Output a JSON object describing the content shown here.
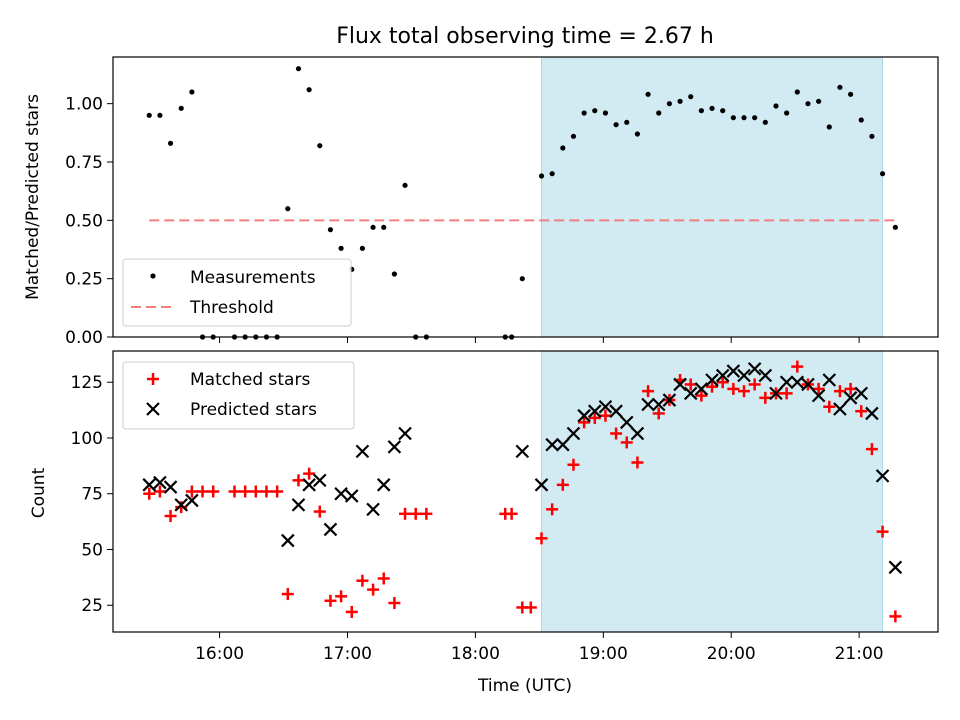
{
  "chart_data": [
    {
      "type": "scatter",
      "title": "Flux total observing time = 2.67 h",
      "xlabel": "",
      "ylabel": "Matched/Predicted stars",
      "xlim": [
        "15:10",
        "21:37"
      ],
      "ylim": [
        0,
        1.2
      ],
      "yticks": [
        0.0,
        0.25,
        0.5,
        0.75,
        1.0
      ],
      "ytick_labels": [
        "0.00",
        "0.25",
        "0.50",
        "0.75",
        "1.00"
      ],
      "shaded_span": [
        "18:31",
        "21:11"
      ],
      "legend": {
        "placement": "lower-left",
        "entries": [
          "Measurements",
          "Threshold"
        ]
      },
      "threshold": {
        "name": "Threshold",
        "y": 0.5,
        "x_range": [
          "15:27",
          "21:17"
        ],
        "color": "#f08080"
      },
      "series": [
        {
          "name": "Measurements",
          "marker": "dot",
          "color": "#000000",
          "points": [
            [
              "15:27",
              0.95
            ],
            [
              "15:32",
              0.95
            ],
            [
              "15:37",
              0.83
            ],
            [
              "15:42",
              0.98
            ],
            [
              "15:47",
              1.05
            ],
            [
              "15:52",
              0.0
            ],
            [
              "15:57",
              0.0
            ],
            [
              "16:07",
              0.0
            ],
            [
              "16:12",
              0.0
            ],
            [
              "16:17",
              0.0
            ],
            [
              "16:22",
              0.0
            ],
            [
              "16:27",
              0.0
            ],
            [
              "16:32",
              0.55
            ],
            [
              "16:37",
              1.15
            ],
            [
              "16:42",
              1.06
            ],
            [
              "16:47",
              0.82
            ],
            [
              "16:52",
              0.46
            ],
            [
              "16:57",
              0.38
            ],
            [
              "17:02",
              0.29
            ],
            [
              "17:07",
              0.38
            ],
            [
              "17:12",
              0.47
            ],
            [
              "17:17",
              0.47
            ],
            [
              "17:22",
              0.27
            ],
            [
              "17:27",
              0.65
            ],
            [
              "17:32",
              0.0
            ],
            [
              "17:37",
              0.0
            ],
            [
              "18:14",
              0.0
            ],
            [
              "18:17",
              0.0
            ],
            [
              "18:22",
              0.25
            ],
            [
              "18:31",
              0.69
            ],
            [
              "18:36",
              0.7
            ],
            [
              "18:41",
              0.81
            ],
            [
              "18:46",
              0.86
            ],
            [
              "18:51",
              0.96
            ],
            [
              "18:56",
              0.97
            ],
            [
              "19:01",
              0.96
            ],
            [
              "19:06",
              0.91
            ],
            [
              "19:11",
              0.92
            ],
            [
              "19:16",
              0.87
            ],
            [
              "19:21",
              1.04
            ],
            [
              "19:26",
              0.96
            ],
            [
              "19:31",
              1.0
            ],
            [
              "19:36",
              1.01
            ],
            [
              "19:41",
              1.03
            ],
            [
              "19:46",
              0.97
            ],
            [
              "19:51",
              0.98
            ],
            [
              "19:56",
              0.97
            ],
            [
              "20:01",
              0.94
            ],
            [
              "20:06",
              0.94
            ],
            [
              "20:11",
              0.94
            ],
            [
              "20:16",
              0.92
            ],
            [
              "20:21",
              0.99
            ],
            [
              "20:26",
              0.96
            ],
            [
              "20:31",
              1.05
            ],
            [
              "20:36",
              1.0
            ],
            [
              "20:41",
              1.01
            ],
            [
              "20:46",
              0.9
            ],
            [
              "20:51",
              1.07
            ],
            [
              "20:56",
              1.04
            ],
            [
              "21:01",
              0.93
            ],
            [
              "21:06",
              0.86
            ],
            [
              "21:11",
              0.7
            ],
            [
              "21:17",
              0.47
            ]
          ]
        }
      ]
    },
    {
      "type": "scatter",
      "title": "",
      "xlabel": "Time (UTC)",
      "ylabel": "Count",
      "xlim": [
        "15:10",
        "21:37"
      ],
      "ylim": [
        13,
        139
      ],
      "xticks": [
        "16:00",
        "17:00",
        "18:00",
        "19:00",
        "20:00",
        "21:00"
      ],
      "yticks": [
        25,
        50,
        75,
        100,
        125
      ],
      "ytick_labels": [
        "25",
        "50",
        "75",
        "100",
        "125"
      ],
      "shaded_span": [
        "18:31",
        "21:11"
      ],
      "legend": {
        "placement": "upper-left",
        "entries": [
          "Matched stars",
          "Predicted stars"
        ]
      },
      "series": [
        {
          "name": "Matched stars",
          "marker": "plus",
          "color": "#ff0000",
          "points": [
            [
              "15:27",
              75
            ],
            [
              "15:32",
              76
            ],
            [
              "15:37",
              65
            ],
            [
              "15:42",
              69
            ],
            [
              "15:47",
              76
            ],
            [
              "15:52",
              76
            ],
            [
              "15:57",
              76
            ],
            [
              "16:07",
              76
            ],
            [
              "16:12",
              76
            ],
            [
              "16:17",
              76
            ],
            [
              "16:22",
              76
            ],
            [
              "16:27",
              76
            ],
            [
              "16:32",
              30
            ],
            [
              "16:37",
              81
            ],
            [
              "16:42",
              84
            ],
            [
              "16:47",
              67
            ],
            [
              "16:52",
              27
            ],
            [
              "16:57",
              29
            ],
            [
              "17:02",
              22
            ],
            [
              "17:07",
              36
            ],
            [
              "17:12",
              32
            ],
            [
              "17:17",
              37
            ],
            [
              "17:22",
              26
            ],
            [
              "17:27",
              66
            ],
            [
              "17:32",
              66
            ],
            [
              "17:37",
              66
            ],
            [
              "18:14",
              66
            ],
            [
              "18:17",
              66
            ],
            [
              "18:22",
              24
            ],
            [
              "18:26",
              24
            ],
            [
              "18:31",
              55
            ],
            [
              "18:36",
              68
            ],
            [
              "18:41",
              79
            ],
            [
              "18:46",
              88
            ],
            [
              "18:51",
              107
            ],
            [
              "18:56",
              109
            ],
            [
              "19:01",
              110
            ],
            [
              "19:06",
              102
            ],
            [
              "19:11",
              98
            ],
            [
              "19:16",
              89
            ],
            [
              "19:21",
              121
            ],
            [
              "19:26",
              111
            ],
            [
              "19:31",
              117
            ],
            [
              "19:36",
              126
            ],
            [
              "19:41",
              124
            ],
            [
              "19:46",
              119
            ],
            [
              "19:51",
              123
            ],
            [
              "19:56",
              125
            ],
            [
              "20:01",
              122
            ],
            [
              "20:06",
              121
            ],
            [
              "20:11",
              124
            ],
            [
              "20:16",
              118
            ],
            [
              "20:21",
              120
            ],
            [
              "20:26",
              120
            ],
            [
              "20:31",
              132
            ],
            [
              "20:36",
              124
            ],
            [
              "20:41",
              122
            ],
            [
              "20:46",
              114
            ],
            [
              "20:51",
              121
            ],
            [
              "20:56",
              122
            ],
            [
              "21:01",
              112
            ],
            [
              "21:06",
              95
            ],
            [
              "21:11",
              58
            ],
            [
              "21:17",
              20
            ]
          ]
        },
        {
          "name": "Predicted stars",
          "marker": "x",
          "color": "#000000",
          "points": [
            [
              "15:27",
              79
            ],
            [
              "15:32",
              80
            ],
            [
              "15:37",
              78
            ],
            [
              "15:42",
              70
            ],
            [
              "15:47",
              72
            ],
            [
              "16:32",
              54
            ],
            [
              "16:37",
              70
            ],
            [
              "16:42",
              79
            ],
            [
              "16:47",
              81
            ],
            [
              "16:52",
              59
            ],
            [
              "16:57",
              75
            ],
            [
              "17:02",
              74
            ],
            [
              "17:07",
              94
            ],
            [
              "17:12",
              68
            ],
            [
              "17:17",
              79
            ],
            [
              "17:22",
              96
            ],
            [
              "17:27",
              102
            ],
            [
              "18:22",
              94
            ],
            [
              "18:31",
              79
            ],
            [
              "18:36",
              97
            ],
            [
              "18:41",
              97
            ],
            [
              "18:46",
              102
            ],
            [
              "18:51",
              110
            ],
            [
              "18:56",
              112
            ],
            [
              "19:01",
              114
            ],
            [
              "19:06",
              112
            ],
            [
              "19:11",
              107
            ],
            [
              "19:16",
              102
            ],
            [
              "19:21",
              115
            ],
            [
              "19:26",
              115
            ],
            [
              "19:31",
              117
            ],
            [
              "19:36",
              124
            ],
            [
              "19:41",
              120
            ],
            [
              "19:46",
              122
            ],
            [
              "19:51",
              126
            ],
            [
              "19:56",
              128
            ],
            [
              "20:01",
              130
            ],
            [
              "20:06",
              128
            ],
            [
              "20:11",
              131
            ],
            [
              "20:16",
              128
            ],
            [
              "20:21",
              120
            ],
            [
              "20:26",
              125
            ],
            [
              "20:31",
              125
            ],
            [
              "20:36",
              124
            ],
            [
              "20:41",
              119
            ],
            [
              "20:46",
              126
            ],
            [
              "20:51",
              113
            ],
            [
              "20:56",
              118
            ],
            [
              "21:01",
              120
            ],
            [
              "21:06",
              111
            ],
            [
              "21:11",
              83
            ],
            [
              "21:17",
              42
            ]
          ]
        }
      ]
    }
  ]
}
